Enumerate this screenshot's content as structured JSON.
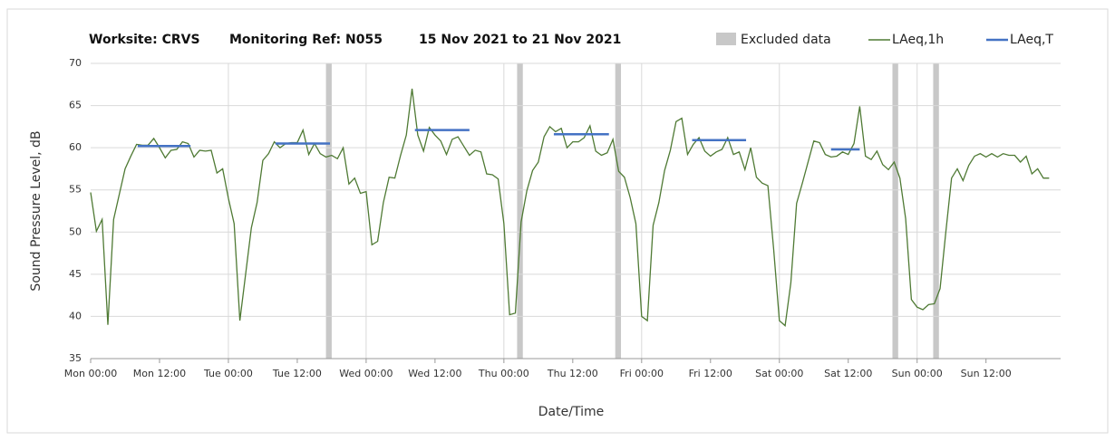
{
  "chart_data": {
    "type": "line",
    "title": [
      "Worksite: CRVS",
      "Monitoring Ref: N055",
      "15 Nov 2021 to 21 Nov 2021"
    ],
    "xlabel": "Date/Time",
    "ylabel": "Sound Pressure Level, dB",
    "xlim": [
      0,
      169
    ],
    "ylim": [
      35,
      70
    ],
    "yticks": [
      35,
      40,
      45,
      50,
      55,
      60,
      65,
      70
    ],
    "xticks": [
      {
        "value": 0,
        "label": "Mon 00:00"
      },
      {
        "value": 12,
        "label": "Mon 12:00"
      },
      {
        "value": 24,
        "label": "Tue 00:00"
      },
      {
        "value": 36,
        "label": "Tue 12:00"
      },
      {
        "value": 48,
        "label": "Wed 00:00"
      },
      {
        "value": 60,
        "label": "Wed 12:00"
      },
      {
        "value": 72,
        "label": "Thu 00:00"
      },
      {
        "value": 84,
        "label": "Thu 12:00"
      },
      {
        "value": 96,
        "label": "Fri 00:00"
      },
      {
        "value": 108,
        "label": "Fri 12:00"
      },
      {
        "value": 120,
        "label": "Sat 00:00"
      },
      {
        "value": 132,
        "label": "Sat 12:00"
      },
      {
        "value": 144,
        "label": "Sun 00:00"
      },
      {
        "value": 156,
        "label": "Sun 12:00"
      }
    ],
    "grid": true,
    "legend": "top-right",
    "x": [
      0,
      1,
      2,
      3,
      4,
      5,
      6,
      7,
      8,
      9,
      10,
      11,
      12,
      13,
      14,
      15,
      16,
      17,
      18,
      19,
      20,
      21,
      22,
      23,
      24,
      25,
      26,
      27,
      28,
      29,
      30,
      31,
      32,
      33,
      34,
      35,
      36,
      37,
      38,
      39,
      40,
      41,
      42,
      43,
      44,
      45,
      46,
      47,
      48,
      49,
      50,
      51,
      52,
      53,
      54,
      55,
      56,
      57,
      58,
      59,
      60,
      61,
      62,
      63,
      64,
      65,
      66,
      67,
      68,
      69,
      70,
      71,
      72,
      73,
      74,
      75,
      76,
      77,
      78,
      79,
      80,
      81,
      82,
      83,
      84,
      85,
      86,
      87,
      88,
      89,
      90,
      91,
      92,
      93,
      94,
      95,
      96,
      97,
      98,
      99,
      100,
      101,
      102,
      103,
      104,
      105,
      106,
      107,
      108,
      109,
      110,
      111,
      112,
      113,
      114,
      115,
      116,
      117,
      118,
      119,
      120,
      121,
      122,
      123,
      124,
      125,
      126,
      127,
      128,
      129,
      130,
      131,
      132,
      133,
      134,
      135,
      136,
      137,
      138,
      139,
      140,
      141,
      142,
      143,
      144,
      145,
      146,
      147,
      148,
      149,
      150,
      151,
      152,
      153,
      154,
      155,
      156,
      157,
      158,
      159,
      160,
      161,
      162,
      163,
      164,
      165,
      166,
      167
    ],
    "series": [
      {
        "name": "LAeq,1h",
        "color": "#4f7a34",
        "values": [
          54.7,
          50.1,
          51.5,
          39,
          51.5,
          54.5,
          57.5,
          59,
          60.4,
          60.3,
          60.3,
          61.1,
          60,
          58.8,
          59.7,
          59.8,
          60.7,
          60.5,
          58.9,
          59.7,
          59.6,
          59.7,
          57,
          57.5,
          54,
          51,
          39.5,
          45,
          50.5,
          53.5,
          58.5,
          59.3,
          60.7,
          60,
          60.5,
          60.6,
          60.6,
          62.1,
          59.2,
          60.5,
          59.3,
          58.9,
          59.1,
          58.7,
          60,
          55.7,
          56.4,
          54.6,
          54.8,
          48.5,
          48.9,
          53.5,
          56.5,
          56.4,
          59.1,
          61.5,
          67,
          61.5,
          59.6,
          62.4,
          61.5,
          60.8,
          59.2,
          61,
          61.3,
          60.2,
          59.1,
          59.7,
          59.5,
          56.9,
          56.8,
          56.3,
          51,
          40.2,
          40.4,
          51.2,
          54.9,
          57.3,
          58.3,
          61.3,
          62.5,
          61.9,
          62.3,
          60,
          60.7,
          60.7,
          61.2,
          62.6,
          59.6,
          59.1,
          59.4,
          61,
          57.2,
          56.5,
          54.1,
          51,
          40,
          39.5,
          50.8,
          53.5,
          57.3,
          59.7,
          63.1,
          63.5,
          59.2,
          60.4,
          61.2,
          59.6,
          59,
          59.5,
          59.8,
          61.2,
          59.2,
          59.5,
          57.4,
          60,
          56.5,
          55.8,
          55.5,
          48,
          39.5,
          38.9,
          44,
          53.4,
          55.8,
          58.3,
          60.8,
          60.6,
          59.2,
          58.9,
          59,
          59.5,
          59.2,
          60.5,
          64.9,
          59,
          58.6,
          59.6,
          58,
          57.4,
          58.3,
          56.4,
          51.6,
          42,
          41.1,
          40.8,
          41.4,
          41.5,
          43.3,
          50,
          56.4,
          57.5,
          56.1,
          57.9,
          59,
          59.3,
          58.9,
          59.3,
          58.9,
          59.3,
          59.1,
          59.1,
          58.3,
          59,
          56.9,
          57.5,
          56.4,
          56.4
        ]
      }
    ],
    "periods": {
      "name": "LAeq,T",
      "color": "#4472c4",
      "segments": [
        {
          "x0": 8.2,
          "x1": 17.4,
          "value": 60.2
        },
        {
          "x0": 32.2,
          "x1": 41.7,
          "value": 60.5
        },
        {
          "x0": 56.5,
          "x1": 66,
          "value": 62.1
        },
        {
          "x0": 80.7,
          "x1": 90.3,
          "value": 61.6
        },
        {
          "x0": 104.8,
          "x1": 114.2,
          "value": 60.9
        },
        {
          "x0": 129,
          "x1": 134,
          "value": 59.8
        }
      ]
    },
    "excluded": {
      "name": "Excluded data",
      "color": "#c8c8c8",
      "ranges": [
        [
          41,
          42
        ],
        [
          74.3,
          75.3
        ],
        [
          91.4,
          92.4
        ],
        [
          139.7,
          140.7
        ],
        [
          146.8,
          147.8
        ]
      ]
    }
  }
}
